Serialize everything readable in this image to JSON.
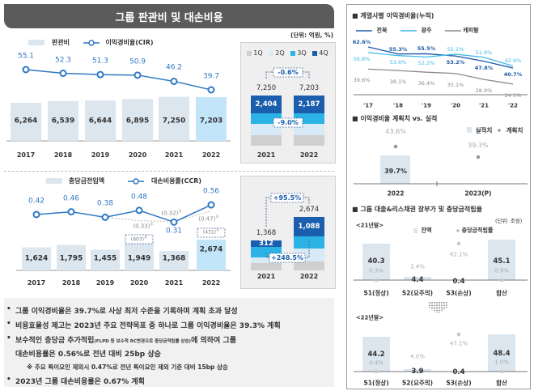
{
  "title": "그룹 판관비 및 대손비용",
  "unit": "(단위: 억원, %)",
  "sga_chart": {
    "legend_bar": "판관비",
    "legend_line": "이익경비율(CIR)",
    "years": [
      "2017",
      "2018",
      "2019",
      "2020",
      "2021",
      "2022"
    ],
    "values": [
      "6,264",
      "6,539",
      "6,644",
      "6,895",
      "7,250",
      "7,203"
    ],
    "cir": [
      "55.1",
      "52.3",
      "51.3",
      "50.9",
      "46.2",
      "39.7"
    ],
    "bar_color": "#dce6ef",
    "highlight_color": "#c3e5fa",
    "line_color": "#2f78c4"
  },
  "sga_quarterly": {
    "legend": [
      "1Q",
      "2Q",
      "3Q",
      "4Q"
    ],
    "colors": [
      "#cfcfcf",
      "#d8eaf6",
      "#2cb3e6",
      "#1a5ead"
    ],
    "years": [
      "2021",
      "2022"
    ],
    "totals": [
      "7,250",
      "7,203"
    ],
    "q4": [
      "2,404",
      "2,187"
    ],
    "total_change": "-0.6%",
    "q4_change": "-9.0%"
  },
  "provision_chart": {
    "legend_bar": "충당금전입액",
    "legend_line": "대손비용률(CCR)",
    "years": [
      "2017",
      "2018",
      "2019",
      "2020",
      "2021",
      "2022"
    ],
    "values": [
      "1,624",
      "1,795",
      "1,455",
      "1,949",
      "1,368",
      "2,674"
    ],
    "ccr": [
      "0.42",
      "0.46",
      "0.38",
      "0.48",
      "0.31",
      "0.56"
    ],
    "adjusted_ccr": [
      {
        "year": "2020",
        "value": "0.33"
      },
      {
        "year": "2021",
        "value": "0.32"
      },
      {
        "year": "2022",
        "value": "0.47"
      }
    ],
    "special_items": [
      {
        "year": "2020",
        "value": "607"
      },
      {
        "year": "2022",
        "value": "431"
      }
    ],
    "note_mark": "주"
  },
  "provision_quarterly": {
    "years": [
      "2021",
      "2022"
    ],
    "totals": [
      "1,368",
      "2,674"
    ],
    "q4": [
      "312",
      "1,088"
    ],
    "total_change": "+95.5%",
    "q4_change": "+248.5%"
  },
  "bullets": {
    "b1": "그룹 이익경비율은 39.7%로 사상 최저 수준을 기록하며 계획 초과 달성",
    "b2": "비용효율성 제고는 2023년 주요 전략목표 중 하나로 그룹 이익경비율은 39.3% 계획",
    "b3a": "보수적인 충당금 추가적립",
    "b3_small": "(FLPD 등 보수적 RC변경으로 충당금적립률 상승)",
    "b3b": "에 의하여 그룹",
    "b3c": "대손비용률은 0.56%로 전년 대비 25bp 상승",
    "note": "※ 주요 특이요인 제외시 0.47%로 전년 특이요인 제외 기준 대비 15bp 상승",
    "b4": "2023년 그룹 대손비용률은 0.67% 계획"
  },
  "affiliate_cir": {
    "title": "계열사별 이익경비율(누적)",
    "x": [
      "'17",
      "'18",
      "'19",
      "'20",
      "'21",
      "'22"
    ],
    "series": [
      {
        "name": "전북",
        "color": "#1f5aa6",
        "values": [
          "62.6%",
          "55.3%",
          "55.5%",
          "53.2%",
          "47.8%",
          "40.7%"
        ]
      },
      {
        "name": "광주",
        "color": "#3fb8ea",
        "values": [
          "56.8%",
          "53.6%",
          "52.2%",
          "55.1%",
          "51.9%",
          "42.9%"
        ]
      },
      {
        "name": "캐피탈",
        "color": "#8a8a8a",
        "values": [
          "39.6%",
          "38.1%",
          "36.4%",
          "35.1%",
          "28.9%",
          "24.1%"
        ]
      }
    ]
  },
  "plan_vs_actual": {
    "title": "이익경비율 계획치 vs. 실적",
    "legend_actual": "실적치",
    "legend_plan": "계획치",
    "years": [
      "2022",
      "2023(P)"
    ],
    "actual": [
      "39.7%"
    ],
    "plan": [
      "43.6%",
      "39.3%"
    ]
  },
  "loan_quality": {
    "title": "그룹 대출&리스채권 장부가 및 충당금적립율",
    "unit": "(단위: 조원)",
    "legend_balance": "잔액",
    "legend_ratio": "충당금적립률",
    "categories": [
      "S1(정상)",
      "S2(요주의)",
      "S3(손상)",
      "합산"
    ],
    "periods": [
      {
        "label": "<21년말>",
        "balance": [
          "40.3",
          "4.4",
          "0.4",
          "45.1"
        ],
        "ratio": [
          "0.3%",
          "2.4%",
          "42.1%",
          "0.9%"
        ]
      },
      {
        "label": "<22년말>",
        "balance": [
          "44.2",
          "3.9",
          "0.4",
          "48.4"
        ],
        "ratio": [
          "0.4%",
          "4.0%",
          "47.1%",
          "1.0%"
        ]
      }
    ]
  }
}
